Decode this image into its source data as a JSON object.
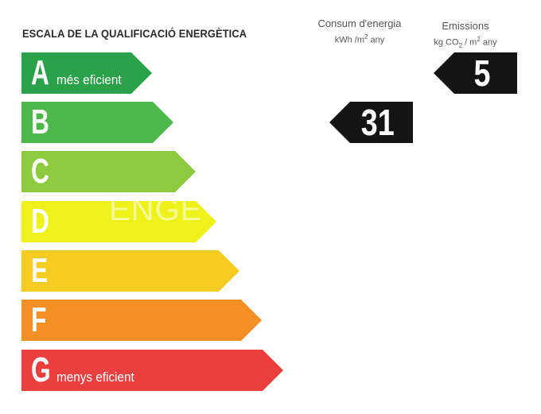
{
  "title": "ESCALA DE LA QUALIFICACIÓ ENERGÈTICA",
  "energy": {
    "heading": "Consum d'energia",
    "unit_pre": "kWh /m",
    "unit_sup": "2",
    "unit_post": " any",
    "value": "31",
    "rating": "B"
  },
  "emissions": {
    "heading": "Emissions",
    "unit_pre": "kg CO",
    "unit_sub": "2",
    "unit_mid": " / m",
    "unit_sup": "2",
    "unit_post": " any",
    "value": "5",
    "rating": "A"
  },
  "bars": [
    {
      "letter": "A",
      "note": "més eficient",
      "color": "#2aa24a"
    },
    {
      "letter": "B",
      "note": "",
      "color": "#4db849"
    },
    {
      "letter": "C",
      "note": "",
      "color": "#8ccb3e"
    },
    {
      "letter": "D",
      "note": "",
      "color": "#eef21a"
    },
    {
      "letter": "E",
      "note": "",
      "color": "#f6cb22"
    },
    {
      "letter": "F",
      "note": "",
      "color": "#f39023"
    },
    {
      "letter": "G",
      "note": "menys eficient",
      "color": "#ea3f3f"
    }
  ],
  "watermark": "ENGE"
}
